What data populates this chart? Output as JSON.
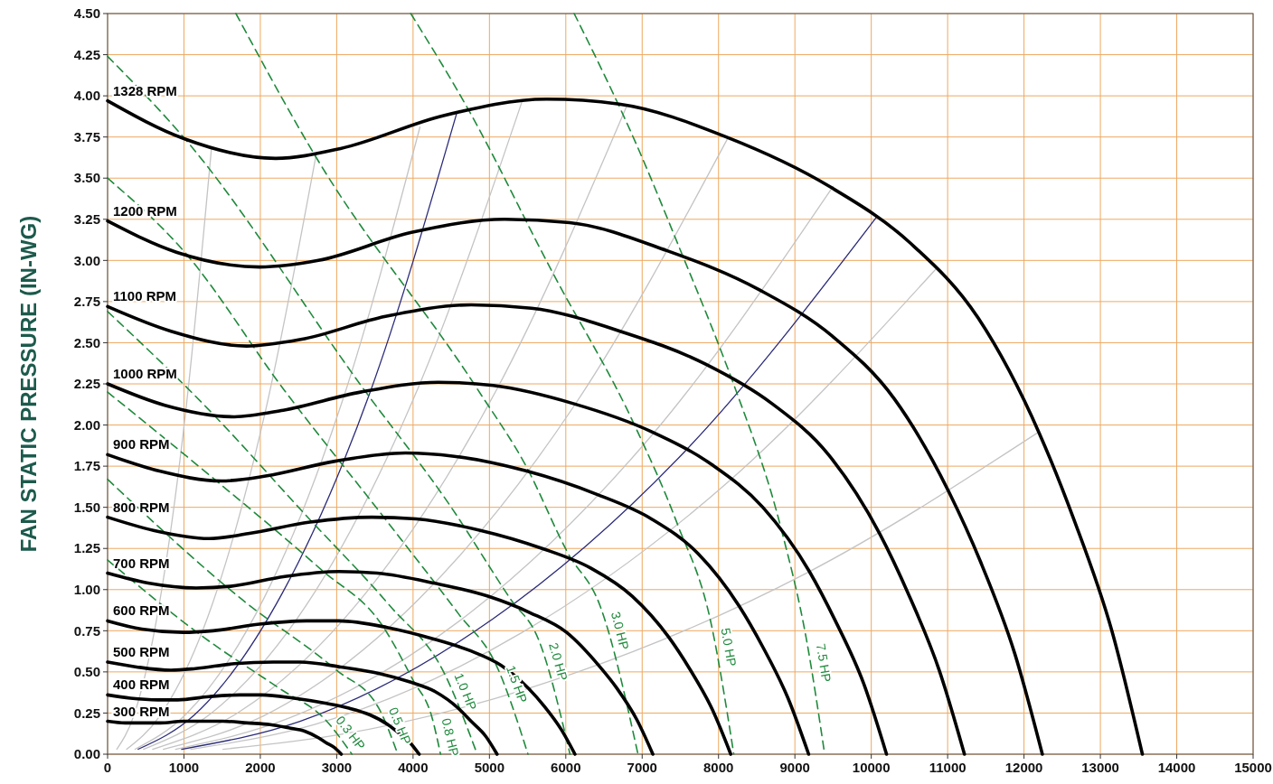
{
  "chart_data": {
    "type": "line",
    "ylabel": "FAN STATIC PRESSURE (IN-WG)",
    "xlim": [
      0,
      15000
    ],
    "ylim": [
      0,
      4.5
    ],
    "xticks": [
      0,
      1000,
      2000,
      3000,
      4000,
      5000,
      6000,
      7000,
      8000,
      9000,
      10000,
      11000,
      12000,
      13000,
      14000,
      15000
    ],
    "yticks": [
      {
        "value": 0,
        "label": "0.00"
      },
      {
        "value": 0.25,
        "label": "0.25"
      },
      {
        "value": 0.5,
        "label": "0.50"
      },
      {
        "value": 0.75,
        "label": "0.75"
      },
      {
        "value": 1,
        "label": "1.00"
      },
      {
        "value": 1.25,
        "label": "1.25"
      },
      {
        "value": 1.5,
        "label": "1.50"
      },
      {
        "value": 1.75,
        "label": "1.75"
      },
      {
        "value": 2,
        "label": "2.00"
      },
      {
        "value": 2.25,
        "label": "2.25"
      },
      {
        "value": 2.5,
        "label": "2.50"
      },
      {
        "value": 2.75,
        "label": "2.75"
      },
      {
        "value": 3,
        "label": "3.00"
      },
      {
        "value": 3.25,
        "label": "3.25"
      },
      {
        "value": 3.5,
        "label": "3.50"
      },
      {
        "value": 3.75,
        "label": "3.75"
      },
      {
        "value": 4,
        "label": "4.00"
      },
      {
        "value": 4.25,
        "label": "4.25"
      },
      {
        "value": 4.5,
        "label": "4.50"
      }
    ],
    "grid": true,
    "series": [
      {
        "color": "#c4c4c4",
        "x": [
          120,
          340,
          680,
          1020,
          1360
        ],
        "values": [
          0.03,
          0.23,
          0.92,
          2.07,
          3.68
        ]
      },
      {
        "color": "#c4c4c4",
        "x": [
          250,
          680,
          1370,
          2050,
          2730
        ],
        "values": [
          0.03,
          0.23,
          0.91,
          2.05,
          3.64
        ]
      },
      {
        "color": "#c4c4c4",
        "x": [
          360,
          1020,
          2050,
          3070,
          4090
        ],
        "values": [
          0.03,
          0.24,
          0.95,
          2.14,
          3.81
        ]
      },
      {
        "color": "#c4c4c4",
        "x": [
          470,
          1360,
          2720,
          4070,
          5430
        ],
        "values": [
          0.03,
          0.25,
          0.99,
          2.23,
          3.97
        ]
      },
      {
        "color": "#c4c4c4",
        "x": [
          590,
          1700,
          3400,
          5100,
          6800
        ],
        "values": [
          0.03,
          0.25,
          0.99,
          2.22,
          3.94
        ]
      },
      {
        "color": "#c4c4c4",
        "x": [
          730,
          2030,
          4070,
          6100,
          8130
        ],
        "values": [
          0.03,
          0.23,
          0.94,
          2.11,
          3.75
        ]
      },
      {
        "color": "#c4c4c4",
        "x": [
          890,
          2380,
          4750,
          7130,
          9500
        ],
        "values": [
          0.03,
          0.22,
          0.86,
          1.94,
          3.45
        ]
      },
      {
        "color": "#c4c4c4",
        "x": [
          1090,
          2710,
          5430,
          8140,
          10850
        ],
        "values": [
          0.03,
          0.18,
          0.74,
          1.66,
          2.95
        ]
      },
      {
        "color": "#c4c4c4",
        "x": [
          1510,
          3050,
          6100,
          9150,
          12200
        ],
        "values": [
          0.03,
          0.12,
          0.49,
          1.1,
          1.96
        ]
      },
      {
        "color": "#2b2b7a",
        "x": [
          400,
          1140,
          2290,
          3430,
          4575
        ],
        "values": [
          0.03,
          0.24,
          0.98,
          2.19,
          3.9
        ]
      },
      {
        "color": "#2b2b7a",
        "x": [
          970,
          2520,
          5040,
          7560,
          10080
        ],
        "values": [
          0.03,
          0.2,
          0.82,
          1.84,
          3.27
        ]
      },
      {
        "name": "0.3 HP",
        "color": "#1f8a3c",
        "line_style": "dashed",
        "x": [
          0,
          1260,
          2250,
          2850,
          3200
        ],
        "values": [
          1.18,
          0.71,
          0.4,
          0.21,
          0
        ]
      },
      {
        "name": "0.5 HP",
        "color": "#1f8a3c",
        "line_style": "dashed",
        "x": [
          0,
          1760,
          3000,
          3550,
          3800
        ],
        "values": [
          1.67,
          0.94,
          0.51,
          0.28,
          0
        ]
      },
      {
        "name": "0.8 HP",
        "color": "#1f8a3c",
        "line_style": "dashed",
        "x": [
          0,
          1400,
          2800,
          3600,
          4000,
          4250,
          4360
        ],
        "values": [
          2.2,
          1.67,
          1.12,
          0.78,
          0.45,
          0.22,
          0
        ]
      },
      {
        "name": "1.0 HP",
        "color": "#1f8a3c",
        "line_style": "dashed",
        "x": [
          0,
          1310,
          2600,
          3700,
          4400,
          4840
        ],
        "values": [
          2.69,
          2.1,
          1.45,
          0.9,
          0.5,
          0
        ]
      },
      {
        "name": "1.5 HP",
        "color": "#1f8a3c",
        "line_style": "dashed",
        "x": [
          0,
          1010,
          2300,
          3600,
          4600,
          5080,
          5505
        ],
        "values": [
          3.5,
          3.05,
          2.22,
          1.45,
          0.85,
          0.55,
          0
        ]
      },
      {
        "name": "2.0 HP",
        "color": "#1f8a3c",
        "line_style": "dashed",
        "x": [
          0,
          1010,
          3350,
          4500,
          5280,
          5640,
          6055
        ],
        "values": [
          4.24,
          3.74,
          2.22,
          1.5,
          0.94,
          0.7,
          0
        ]
      },
      {
        "name": "3.0 HP",
        "color": "#1f8a3c",
        "line_style": "dashed",
        "x": [
          1680,
          2700,
          4840,
          5480,
          6030,
          6450,
          6945
        ],
        "values": [
          4.5,
          3.65,
          2.22,
          1.75,
          1.22,
          0.9,
          0
        ]
      },
      {
        "name": "5.0 HP",
        "color": "#1f8a3c",
        "line_style": "dashed",
        "x": [
          3970,
          4720,
          5800,
          6920,
          7460,
          7900,
          8200
        ],
        "values": [
          4.5,
          3.92,
          2.95,
          1.98,
          1.4,
          0.8,
          0
        ]
      },
      {
        "name": "7.5 HP",
        "color": "#1f8a3c",
        "line_style": "dashed",
        "x": [
          6110,
          6920,
          7520,
          8000,
          8220,
          8820,
          9150,
          9390
        ],
        "values": [
          4.5,
          3.71,
          3.04,
          2.49,
          2.22,
          1.37,
          0.7,
          0
        ]
      },
      {
        "name": "1328 RPM",
        "color": "#000000",
        "x": [
          0,
          1000,
          2200,
          3050,
          4400,
          5750,
          6700,
          8100,
          9450,
          10500,
          11400,
          12200,
          12650,
          13150,
          13550
        ],
        "values": [
          3.97,
          3.74,
          3.62,
          3.68,
          3.88,
          3.98,
          3.95,
          3.75,
          3.45,
          3.11,
          2.65,
          1.95,
          1.43,
          0.75,
          0
        ]
      },
      {
        "name": "1200 RPM",
        "color": "#000000",
        "x": [
          0,
          900,
          1990,
          2760,
          3980,
          5200,
          6050,
          7320,
          8540,
          9490,
          10300,
          11020,
          11430,
          11880,
          12240
        ],
        "values": [
          3.24,
          3.05,
          2.96,
          3.0,
          3.17,
          3.25,
          3.23,
          3.06,
          2.82,
          2.54,
          2.16,
          1.59,
          1.17,
          0.61,
          0
        ]
      },
      {
        "name": "1100 RPM",
        "color": "#000000",
        "x": [
          0,
          830,
          1820,
          2530,
          3640,
          4760,
          5550,
          6710,
          7830,
          8700,
          9440,
          10110,
          10480,
          10890,
          11220
        ],
        "values": [
          2.72,
          2.57,
          2.48,
          2.52,
          2.66,
          2.73,
          2.71,
          2.57,
          2.37,
          2.13,
          1.82,
          1.34,
          0.98,
          0.51,
          0
        ]
      },
      {
        "name": "1000 RPM",
        "color": "#000000",
        "x": [
          0,
          750,
          1660,
          2300,
          3310,
          4330,
          5050,
          6100,
          7120,
          7910,
          8580,
          9190,
          9530,
          9900,
          10200
        ],
        "values": [
          2.25,
          2.12,
          2.05,
          2.09,
          2.2,
          2.26,
          2.24,
          2.13,
          1.96,
          1.76,
          1.5,
          1.11,
          0.81,
          0.43,
          0
        ]
      },
      {
        "name": "900 RPM",
        "color": "#000000",
        "x": [
          0,
          680,
          1490,
          2070,
          2980,
          3900,
          4540,
          5490,
          6400,
          7120,
          7730,
          8270,
          8570,
          8910,
          9180
        ],
        "values": [
          1.82,
          1.72,
          1.66,
          1.69,
          1.78,
          1.83,
          1.81,
          1.72,
          1.58,
          1.43,
          1.22,
          0.9,
          0.66,
          0.34,
          0
        ]
      },
      {
        "name": "800 RPM",
        "color": "#000000",
        "x": [
          0,
          600,
          1330,
          1840,
          2650,
          3460,
          4040,
          4880,
          5690,
          6330,
          6870,
          7350,
          7620,
          7920,
          8160
        ],
        "values": [
          1.44,
          1.36,
          1.31,
          1.34,
          1.41,
          1.44,
          1.43,
          1.36,
          1.25,
          1.13,
          0.96,
          0.71,
          0.52,
          0.27,
          0
        ]
      },
      {
        "name": "700 RPM",
        "color": "#000000",
        "x": [
          0,
          530,
          1160,
          1610,
          2320,
          3030,
          3530,
          4270,
          4980,
          5530,
          6010,
          6430,
          6670,
          6930,
          7140
        ],
        "values": [
          1.1,
          1.04,
          1.01,
          1.02,
          1.08,
          1.11,
          1.1,
          1.04,
          0.96,
          0.86,
          0.74,
          0.54,
          0.4,
          0.21,
          0
        ]
      },
      {
        "name": "600 RPM",
        "color": "#000000",
        "x": [
          0,
          450,
          990,
          1380,
          1990,
          2600,
          3030,
          3660,
          4270,
          4740,
          5150,
          5510,
          5720,
          5940,
          6120
        ],
        "values": [
          0.81,
          0.76,
          0.74,
          0.75,
          0.79,
          0.81,
          0.81,
          0.77,
          0.7,
          0.63,
          0.54,
          0.4,
          0.29,
          0.15,
          0
        ]
      },
      {
        "name": "500 RPM",
        "color": "#000000",
        "x": [
          0,
          380,
          830,
          1150,
          1660,
          2170,
          2520,
          3050,
          3560,
          3950,
          4290,
          4590,
          4760,
          4950,
          5100
        ],
        "values": [
          0.56,
          0.53,
          0.51,
          0.52,
          0.55,
          0.56,
          0.56,
          0.53,
          0.49,
          0.44,
          0.38,
          0.28,
          0.2,
          0.11,
          0
        ]
      },
      {
        "name": "400 RPM",
        "color": "#000000",
        "x": [
          0,
          300,
          660,
          920,
          1330,
          1730,
          2020,
          2440,
          2850,
          3160,
          3430,
          3670,
          3810,
          3960,
          4080
        ],
        "values": [
          0.36,
          0.34,
          0.33,
          0.33,
          0.35,
          0.36,
          0.36,
          0.34,
          0.31,
          0.28,
          0.24,
          0.18,
          0.13,
          0.07,
          0
        ]
      },
      {
        "name": "300 RPM",
        "color": "#000000",
        "x": [
          0,
          230,
          500,
          690,
          990,
          1300,
          1510,
          1830,
          2130,
          2370,
          2580,
          2760,
          2860,
          2970,
          3060
        ],
        "values": [
          0.2,
          0.19,
          0.19,
          0.19,
          0.2,
          0.2,
          0.2,
          0.19,
          0.18,
          0.16,
          0.14,
          0.1,
          0.07,
          0.04,
          0
        ]
      }
    ]
  }
}
